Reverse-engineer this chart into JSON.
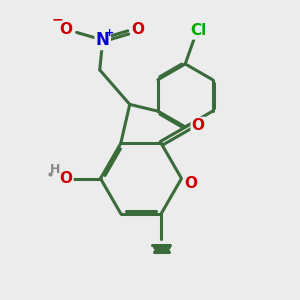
{
  "bg_color": "#ececec",
  "bond_color": "#3a6b3a",
  "bond_width": 2.2,
  "atom_colors": {
    "O": "#cc0000",
    "N": "#0000cc",
    "Cl": "#00aa00",
    "H": "#888888"
  },
  "font_size_atom": 11,
  "font_size_charge": 9,
  "font_size_methyl": 9
}
